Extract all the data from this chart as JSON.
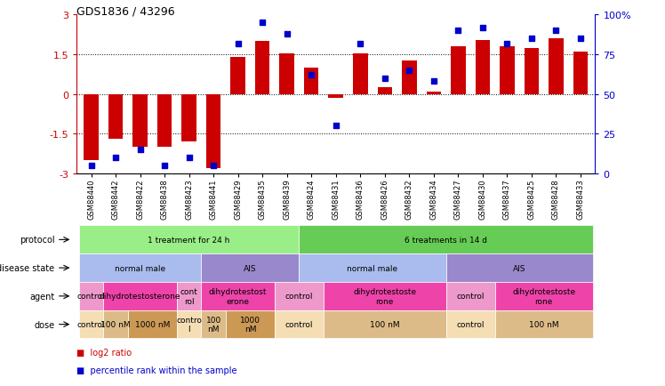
{
  "title": "GDS1836 / 43296",
  "samples": [
    "GSM88440",
    "GSM88442",
    "GSM88422",
    "GSM88438",
    "GSM88423",
    "GSM88441",
    "GSM88429",
    "GSM88435",
    "GSM88439",
    "GSM88424",
    "GSM88431",
    "GSM88436",
    "GSM88426",
    "GSM88432",
    "GSM88434",
    "GSM88427",
    "GSM88430",
    "GSM88437",
    "GSM88425",
    "GSM88428",
    "GSM88433"
  ],
  "log2_ratio": [
    -2.5,
    -1.7,
    -2.0,
    -2.0,
    -1.8,
    -2.8,
    1.4,
    2.0,
    1.55,
    1.0,
    -0.15,
    1.55,
    0.25,
    1.25,
    0.1,
    1.8,
    2.05,
    1.8,
    1.75,
    2.1,
    1.6
  ],
  "percentile": [
    5,
    10,
    15,
    5,
    10,
    5,
    82,
    95,
    88,
    62,
    30,
    82,
    60,
    65,
    58,
    90,
    92,
    82,
    85,
    90,
    85
  ],
  "ylim": [
    -3,
    3
  ],
  "y2lim": [
    0,
    100
  ],
  "yticks": [
    -3,
    -1.5,
    0,
    1.5,
    3
  ],
  "y2ticks": [
    0,
    25,
    50,
    75,
    100
  ],
  "hlines": [
    -1.5,
    0,
    1.5
  ],
  "bar_color": "#cc0000",
  "dot_color": "#0000cc",
  "bar_width": 0.6,
  "protocol_spans": [
    {
      "label": "1 treatment for 24 h",
      "start": 0,
      "end": 8,
      "color": "#99ee88"
    },
    {
      "label": "6 treatments in 14 d",
      "start": 9,
      "end": 20,
      "color": "#66cc55"
    }
  ],
  "disease_spans": [
    {
      "label": "normal male",
      "start": 0,
      "end": 4,
      "color": "#aabbee"
    },
    {
      "label": "AIS",
      "start": 5,
      "end": 8,
      "color": "#9988cc"
    },
    {
      "label": "normal male",
      "start": 9,
      "end": 14,
      "color": "#aabbee"
    },
    {
      "label": "AIS",
      "start": 15,
      "end": 20,
      "color": "#9988cc"
    }
  ],
  "agent_spans": [
    {
      "label": "control",
      "start": 0,
      "end": 0,
      "color": "#ee99cc"
    },
    {
      "label": "dihydrotestosterone",
      "start": 1,
      "end": 3,
      "color": "#ee44aa"
    },
    {
      "label": "cont\nrol",
      "start": 4,
      "end": 4,
      "color": "#ee99cc"
    },
    {
      "label": "dihydrotestost\nerone",
      "start": 5,
      "end": 7,
      "color": "#ee44aa"
    },
    {
      "label": "control",
      "start": 8,
      "end": 9,
      "color": "#ee99cc"
    },
    {
      "label": "dihydrotestoste\nrone",
      "start": 10,
      "end": 14,
      "color": "#ee44aa"
    },
    {
      "label": "control",
      "start": 15,
      "end": 16,
      "color": "#ee99cc"
    },
    {
      "label": "dihydrotestoste\nrone",
      "start": 17,
      "end": 20,
      "color": "#ee44aa"
    }
  ],
  "dose_spans": [
    {
      "label": "control",
      "start": 0,
      "end": 0,
      "color": "#f5deb3"
    },
    {
      "label": "100 nM",
      "start": 1,
      "end": 1,
      "color": "#ddbb88"
    },
    {
      "label": "1000 nM",
      "start": 2,
      "end": 3,
      "color": "#cc9955"
    },
    {
      "label": "contro\nl",
      "start": 4,
      "end": 4,
      "color": "#f5deb3"
    },
    {
      "label": "100\nnM",
      "start": 5,
      "end": 5,
      "color": "#ddbb88"
    },
    {
      "label": "1000\nnM",
      "start": 6,
      "end": 7,
      "color": "#cc9955"
    },
    {
      "label": "control",
      "start": 8,
      "end": 9,
      "color": "#f5deb3"
    },
    {
      "label": "100 nM",
      "start": 10,
      "end": 14,
      "color": "#ddbb88"
    },
    {
      "label": "control",
      "start": 15,
      "end": 16,
      "color": "#f5deb3"
    },
    {
      "label": "100 nM",
      "start": 17,
      "end": 20,
      "color": "#ddbb88"
    }
  ],
  "row_labels": [
    "protocol",
    "disease state",
    "agent",
    "dose"
  ],
  "legend_items": [
    {
      "label": "log2 ratio",
      "color": "#cc0000"
    },
    {
      "label": "percentile rank within the sample",
      "color": "#0000cc"
    }
  ],
  "axis_color_left": "#cc0000",
  "axis_color_right": "#0000cc",
  "bg_color": "#ffffff"
}
